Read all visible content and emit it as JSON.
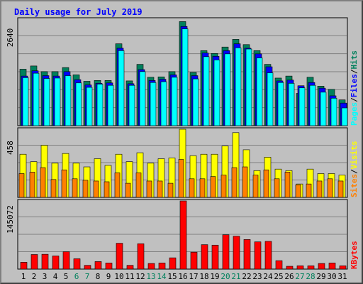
{
  "title": "Daily usage for July 2019",
  "colors": {
    "hits": "#00805c",
    "files": "#0000ff",
    "pages": "#00ffff",
    "visits": "#ffff00",
    "sites": "#ff8000",
    "kbytes": "#ff0000",
    "weekend_label": "#00805c",
    "weekday_label": "#000000"
  },
  "chart_data": [
    {
      "type": "bar",
      "name": "hits-files-pages",
      "ymax_label": "2640",
      "ylim": [
        0,
        2640
      ],
      "categories": [
        "1",
        "2",
        "3",
        "4",
        "5",
        "6",
        "7",
        "8",
        "9",
        "10",
        "11",
        "12",
        "13",
        "14",
        "15",
        "16",
        "17",
        "18",
        "19",
        "20",
        "21",
        "22",
        "23",
        "24",
        "25",
        "26",
        "27",
        "28",
        "29",
        "30",
        "31"
      ],
      "weekend": [
        "6",
        "7",
        "13",
        "14",
        "20",
        "21",
        "27",
        "28"
      ],
      "legend": [
        "Pages",
        "/",
        "Files",
        "/",
        "Hits"
      ],
      "series": [
        {
          "name": "Hits",
          "values": [
            1400,
            1480,
            1340,
            1340,
            1440,
            1260,
            1100,
            1120,
            1120,
            2030,
            1110,
            1520,
            1200,
            1210,
            1340,
            2580,
            1320,
            1860,
            1790,
            1950,
            2140,
            2010,
            1860,
            1520,
            1180,
            1230,
            800,
            1200,
            980,
            900,
            640
          ]
        },
        {
          "name": "Files",
          "values": [
            1230,
            1360,
            1240,
            1230,
            1340,
            1140,
            1010,
            1050,
            1060,
            1920,
            1040,
            1390,
            1120,
            1150,
            1260,
            2460,
            1240,
            1800,
            1720,
            1860,
            2030,
            1920,
            1780,
            1460,
            1110,
            1130,
            990,
            1070,
            930,
            740,
            560
          ]
        },
        {
          "name": "Pages",
          "values": [
            1190,
            1300,
            1170,
            1180,
            1240,
            1060,
            950,
            1030,
            1000,
            1860,
            1000,
            1340,
            1070,
            1090,
            1200,
            2400,
            1160,
            1710,
            1630,
            1780,
            1930,
            1900,
            1680,
            1310,
            1070,
            1050,
            940,
            1000,
            830,
            680,
            440
          ]
        }
      ]
    },
    {
      "type": "bar",
      "name": "visits-sites",
      "ymax_label": "458",
      "ylim": [
        0,
        458
      ],
      "categories": [
        "1",
        "2",
        "3",
        "4",
        "5",
        "6",
        "7",
        "8",
        "9",
        "10",
        "11",
        "12",
        "13",
        "14",
        "15",
        "16",
        "17",
        "18",
        "19",
        "20",
        "21",
        "22",
        "23",
        "24",
        "25",
        "26",
        "27",
        "28",
        "29",
        "30",
        "31"
      ],
      "legend": [
        "Sites",
        "/",
        "Visits"
      ],
      "series": [
        {
          "name": "Visits",
          "values": [
            290,
            240,
            350,
            230,
            295,
            230,
            205,
            260,
            215,
            290,
            240,
            300,
            230,
            260,
            265,
            458,
            280,
            290,
            290,
            345,
            435,
            320,
            180,
            270,
            190,
            180,
            90,
            190,
            160,
            160,
            150
          ]
        },
        {
          "name": "Sites",
          "values": [
            160,
            170,
            200,
            120,
            185,
            125,
            115,
            110,
            105,
            165,
            95,
            165,
            110,
            110,
            95,
            255,
            125,
            125,
            140,
            150,
            200,
            205,
            150,
            185,
            125,
            170,
            85,
            90,
            110,
            125,
            110
          ]
        }
      ]
    },
    {
      "type": "bar",
      "name": "kbytes",
      "ymax_label": "145072",
      "ylim": [
        0,
        145072
      ],
      "categories": [
        "1",
        "2",
        "3",
        "4",
        "5",
        "6",
        "7",
        "8",
        "9",
        "10",
        "11",
        "12",
        "13",
        "14",
        "15",
        "16",
        "17",
        "18",
        "19",
        "20",
        "21",
        "22",
        "23",
        "24",
        "25",
        "26",
        "27",
        "28",
        "29",
        "30",
        "31"
      ],
      "legend": [
        "KBytes"
      ],
      "series": [
        {
          "name": "KBytes",
          "values": [
            14500,
            31000,
            31500,
            28000,
            37000,
            22000,
            8000,
            16000,
            13000,
            55000,
            8000,
            54000,
            12000,
            13000,
            24000,
            145072,
            36000,
            52000,
            51000,
            73000,
            70000,
            63000,
            58000,
            59000,
            18000,
            6000,
            7000,
            7000,
            12000,
            13000,
            7000
          ]
        }
      ]
    }
  ]
}
